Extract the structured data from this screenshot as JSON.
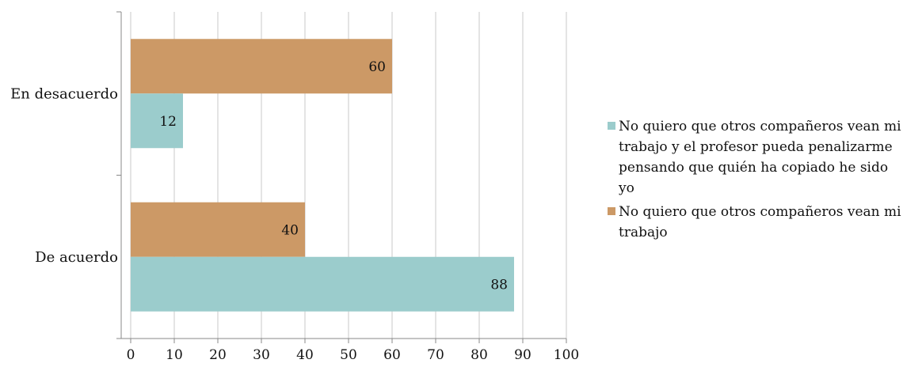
{
  "chart_data": {
    "type": "bar",
    "orientation": "horizontal",
    "categories": [
      "En desacuerdo",
      "De acuerdo"
    ],
    "series": [
      {
        "name": "No quiero que otros compañeros vean mi trabajo y el profesor pueda penalizarme pensando que quién ha copiado he sido yo",
        "legend_lines": [
          "No quiero que otros compañeros vean mi",
          "trabajo y el profesor pueda penalizarme",
          "pensando que quién ha copiado he sido",
          "yo"
        ],
        "color": "#9bcccc",
        "values": [
          12,
          88
        ]
      },
      {
        "name": "No quiero que otros compañeros vean mi trabajo",
        "legend_lines": [
          "No quiero que otros compañeros vean mi",
          "trabajo"
        ],
        "color": "#cc9966",
        "values": [
          60,
          40
        ]
      }
    ],
    "xlim": [
      0,
      100
    ],
    "xticks": [
      0,
      10,
      20,
      30,
      40,
      50,
      60,
      70,
      80,
      90,
      100
    ],
    "grid": true,
    "legend": "right",
    "title": "",
    "xlabel": "",
    "ylabel": ""
  }
}
